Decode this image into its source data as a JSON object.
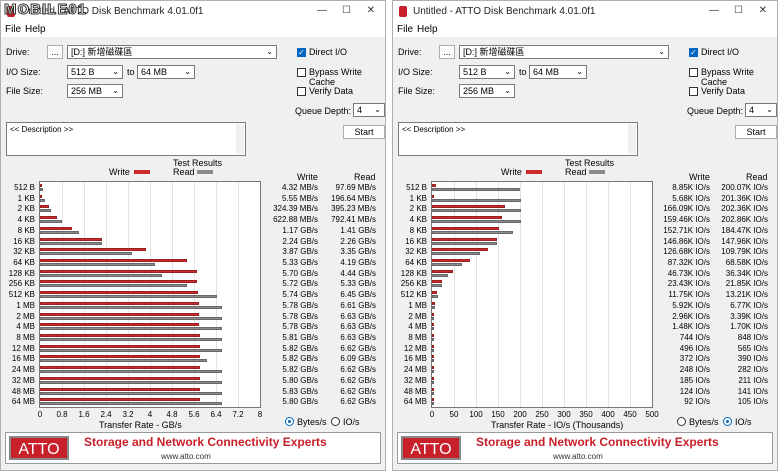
{
  "watermark": "MOBILE01",
  "windows": [
    {
      "title": "Untitled - ATTO Disk Benchmark 4.01.0f1",
      "menu": [
        "File",
        "Help"
      ],
      "drive_label": "Drive:",
      "browse": "...",
      "drive": "[D:] 新增磁碟區",
      "io_size_label": "I/O Size:",
      "io_from": "512 B",
      "to_label": "to",
      "io_to": "64 MB",
      "file_size_label": "File Size:",
      "file_size": "256 MB",
      "direct_io": "Direct I/O",
      "direct_io_checked": true,
      "bypass_write_cache": "Bypass Write Cache",
      "bypass_checked": false,
      "verify_data": "Verify Data",
      "verify_checked": false,
      "queue_depth_label": "Queue Depth:",
      "queue_depth": "4",
      "description": "<< Description >>",
      "start": "Start",
      "test_results": "Test Results",
      "legend_write": "Write",
      "legend_read": "Read",
      "col_write": "Write",
      "col_read": "Read",
      "bytes_label": "Bytes/s",
      "io_label": "IO/s",
      "bytes_selected": true,
      "axis_title": "Transfer Rate - GB/s",
      "banner_logo": "ATTO",
      "banner_tagline": "Storage and Network Connectivity Experts",
      "banner_url": "www.atto.com",
      "chart_data": {
        "type": "bar",
        "orientation": "horizontal",
        "title": "Test Results",
        "xlabel": "Transfer Rate - GB/s",
        "xlim": [
          0,
          8
        ],
        "xticks": [
          "0",
          "0.8",
          "1.6",
          "2.4",
          "3.2",
          "4",
          "4.8",
          "5.6",
          "6.4",
          "7.2",
          "8"
        ],
        "categories": [
          "512 B",
          "1 KB",
          "2 KB",
          "4 KB",
          "8 KB",
          "16 KB",
          "32 KB",
          "64 KB",
          "128 KB",
          "256 KB",
          "512 KB",
          "1 MB",
          "2 MB",
          "4 MB",
          "8 MB",
          "12 MB",
          "16 MB",
          "24 MB",
          "32 MB",
          "48 MB",
          "64 MB"
        ],
        "series": [
          {
            "name": "Write",
            "color": "#cc2b2b",
            "values": [
              0.0043,
              0.0056,
              0.324,
              0.623,
              1.17,
              2.24,
              3.87,
              5.33,
              5.7,
              5.72,
              5.74,
              5.78,
              5.78,
              5.78,
              5.81,
              5.82,
              5.82,
              5.82,
              5.8,
              5.83,
              5.8
            ]
          },
          {
            "name": "Read",
            "color": "#8a8a8a",
            "values": [
              0.0977,
              0.197,
              0.395,
              0.792,
              1.41,
              2.26,
              3.35,
              4.19,
              4.44,
              5.33,
              6.45,
              6.61,
              6.63,
              6.63,
              6.63,
              6.62,
              6.09,
              6.62,
              6.62,
              6.62,
              6.62
            ]
          }
        ],
        "write_text": [
          "4.32 MB/s",
          "5.55 MB/s",
          "324.39 MB/s",
          "622.88 MB/s",
          "1.17 GB/s",
          "2.24 GB/s",
          "3.87 GB/s",
          "5.33 GB/s",
          "5.70 GB/s",
          "5.72 GB/s",
          "5.74 GB/s",
          "5.78 GB/s",
          "5.78 GB/s",
          "5.78 GB/s",
          "5.81 GB/s",
          "5.82 GB/s",
          "5.82 GB/s",
          "5.82 GB/s",
          "5.80 GB/s",
          "5.83 GB/s",
          "5.80 GB/s"
        ],
        "read_text": [
          "97.69 MB/s",
          "196.64 MB/s",
          "395.23 MB/s",
          "792.41 MB/s",
          "1.41 GB/s",
          "2.26 GB/s",
          "3.35 GB/s",
          "4.19 GB/s",
          "4.44 GB/s",
          "5.33 GB/s",
          "6.45 GB/s",
          "6.61 GB/s",
          "6.63 GB/s",
          "6.63 GB/s",
          "6.63 GB/s",
          "6.62 GB/s",
          "6.09 GB/s",
          "6.62 GB/s",
          "6.62 GB/s",
          "6.62 GB/s",
          "6.62 GB/s"
        ]
      }
    },
    {
      "title": "Untitled - ATTO Disk Benchmark 4.01.0f1",
      "menu": [
        "File",
        "Help"
      ],
      "drive_label": "Drive:",
      "browse": "...",
      "drive": "[D:] 新增磁碟區",
      "io_size_label": "I/O Size:",
      "io_from": "512 B",
      "to_label": "to",
      "io_to": "64 MB",
      "file_size_label": "File Size:",
      "file_size": "256 MB",
      "direct_io": "Direct I/O",
      "direct_io_checked": true,
      "bypass_write_cache": "Bypass Write Cache",
      "bypass_checked": false,
      "verify_data": "Verify Data",
      "verify_checked": false,
      "queue_depth_label": "Queue Depth:",
      "queue_depth": "4",
      "description": "<< Description >>",
      "start": "Start",
      "test_results": "Test Results",
      "legend_write": "Write",
      "legend_read": "Read",
      "col_write": "Write",
      "col_read": "Read",
      "bytes_label": "Bytes/s",
      "io_label": "IO/s",
      "bytes_selected": false,
      "axis_title": "Transfer Rate - IO/s (Thousands)",
      "banner_logo": "ATTO",
      "banner_tagline": "Storage and Network Connectivity Experts",
      "banner_url": "www.atto.com",
      "chart_data": {
        "type": "bar",
        "orientation": "horizontal",
        "title": "Test Results",
        "xlabel": "Transfer Rate - IO/s (Thousands)",
        "xlim": [
          0,
          500
        ],
        "xticks": [
          "0",
          "50",
          "100",
          "150",
          "200",
          "250",
          "300",
          "350",
          "400",
          "450",
          "500"
        ],
        "categories": [
          "512 B",
          "1 KB",
          "2 KB",
          "4 KB",
          "8 KB",
          "16 KB",
          "32 KB",
          "64 KB",
          "128 KB",
          "256 KB",
          "512 KB",
          "1 MB",
          "2 MB",
          "4 MB",
          "8 MB",
          "12 MB",
          "16 MB",
          "24 MB",
          "32 MB",
          "48 MB",
          "64 MB"
        ],
        "series": [
          {
            "name": "Write",
            "color": "#cc2b2b",
            "values": [
              8.85,
              5.68,
              166.09,
              159.46,
              152.71,
              146.86,
              126.68,
              87.32,
              46.73,
              23.43,
              11.75,
              5.92,
              2.96,
              1.48,
              0.744,
              0.496,
              0.372,
              0.248,
              0.185,
              0.124,
              0.092
            ]
          },
          {
            "name": "Read",
            "color": "#8a8a8a",
            "values": [
              200.07,
              201.36,
              202.36,
              202.86,
              184.47,
              147.96,
              109.79,
              68.58,
              36.34,
              21.85,
              13.21,
              6.77,
              3.39,
              1.7,
              0.848,
              0.565,
              0.39,
              0.282,
              0.211,
              0.141,
              0.105
            ]
          }
        ],
        "write_text": [
          "8.85K IO/s",
          "5.68K IO/s",
          "166.09K IO/s",
          "159.46K IO/s",
          "152.71K IO/s",
          "146.86K IO/s",
          "126.68K IO/s",
          "87.32K IO/s",
          "46.73K IO/s",
          "23.43K IO/s",
          "11.75K IO/s",
          "5.92K IO/s",
          "2.96K IO/s",
          "1.48K IO/s",
          "744 IO/s",
          "496 IO/s",
          "372 IO/s",
          "248 IO/s",
          "185 IO/s",
          "124 IO/s",
          "92 IO/s"
        ],
        "read_text": [
          "200.07K IO/s",
          "201.36K IO/s",
          "202.36K IO/s",
          "202.86K IO/s",
          "184.47K IO/s",
          "147.96K IO/s",
          "109.79K IO/s",
          "68.58K IO/s",
          "36.34K IO/s",
          "21.85K IO/s",
          "13.21K IO/s",
          "6.77K IO/s",
          "3.39K IO/s",
          "1.70K IO/s",
          "848 IO/s",
          "565 IO/s",
          "390 IO/s",
          "282 IO/s",
          "211 IO/s",
          "141 IO/s",
          "105 IO/s"
        ]
      }
    }
  ]
}
